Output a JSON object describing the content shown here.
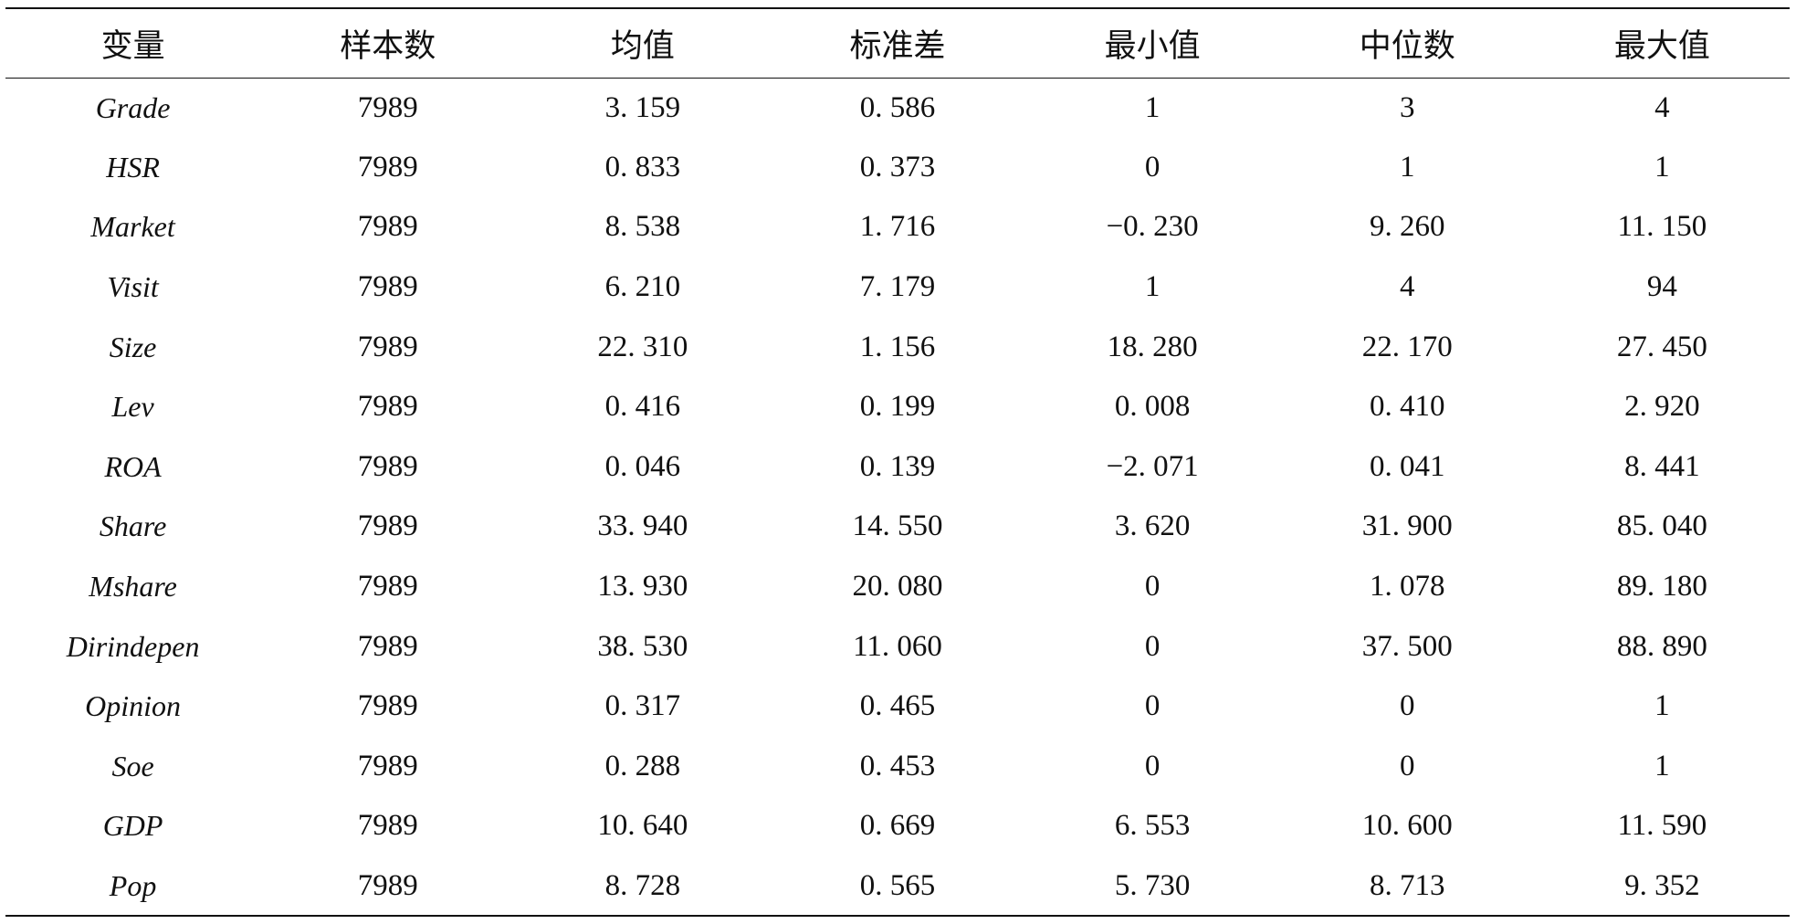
{
  "table": {
    "headers": [
      "变量",
      "样本数",
      "均值",
      "标准差",
      "最小值",
      "中位数",
      "最大值"
    ],
    "rows": [
      [
        "Grade",
        "7989",
        "3. 159",
        "0. 586",
        "1",
        "3",
        "4"
      ],
      [
        "HSR",
        "7989",
        "0. 833",
        "0. 373",
        "0",
        "1",
        "1"
      ],
      [
        "Market",
        "7989",
        "8. 538",
        "1. 716",
        "−0. 230",
        "9. 260",
        "11. 150"
      ],
      [
        "Visit",
        "7989",
        "6. 210",
        "7. 179",
        "1",
        "4",
        "94"
      ],
      [
        "Size",
        "7989",
        "22. 310",
        "1. 156",
        "18. 280",
        "22. 170",
        "27. 450"
      ],
      [
        "Lev",
        "7989",
        "0. 416",
        "0. 199",
        "0. 008",
        "0. 410",
        "2. 920"
      ],
      [
        "ROA",
        "7989",
        "0. 046",
        "0. 139",
        "−2. 071",
        "0. 041",
        "8. 441"
      ],
      [
        "Share",
        "7989",
        "33. 940",
        "14. 550",
        "3. 620",
        "31. 900",
        "85. 040"
      ],
      [
        "Mshare",
        "7989",
        "13. 930",
        "20. 080",
        "0",
        "1. 078",
        "89. 180"
      ],
      [
        "Dirindepen",
        "7989",
        "38. 530",
        "11. 060",
        "0",
        "37. 500",
        "88. 890"
      ],
      [
        "Opinion",
        "7989",
        "0. 317",
        "0. 465",
        "0",
        "0",
        "1"
      ],
      [
        "Soe",
        "7989",
        "0. 288",
        "0. 453",
        "0",
        "0",
        "1"
      ],
      [
        "GDP",
        "7989",
        "10. 640",
        "0. 669",
        "6. 553",
        "10. 600",
        "11. 590"
      ],
      [
        "Pop",
        "7989",
        "8. 728",
        "0. 565",
        "5. 730",
        "8. 713",
        "9. 352"
      ]
    ]
  }
}
